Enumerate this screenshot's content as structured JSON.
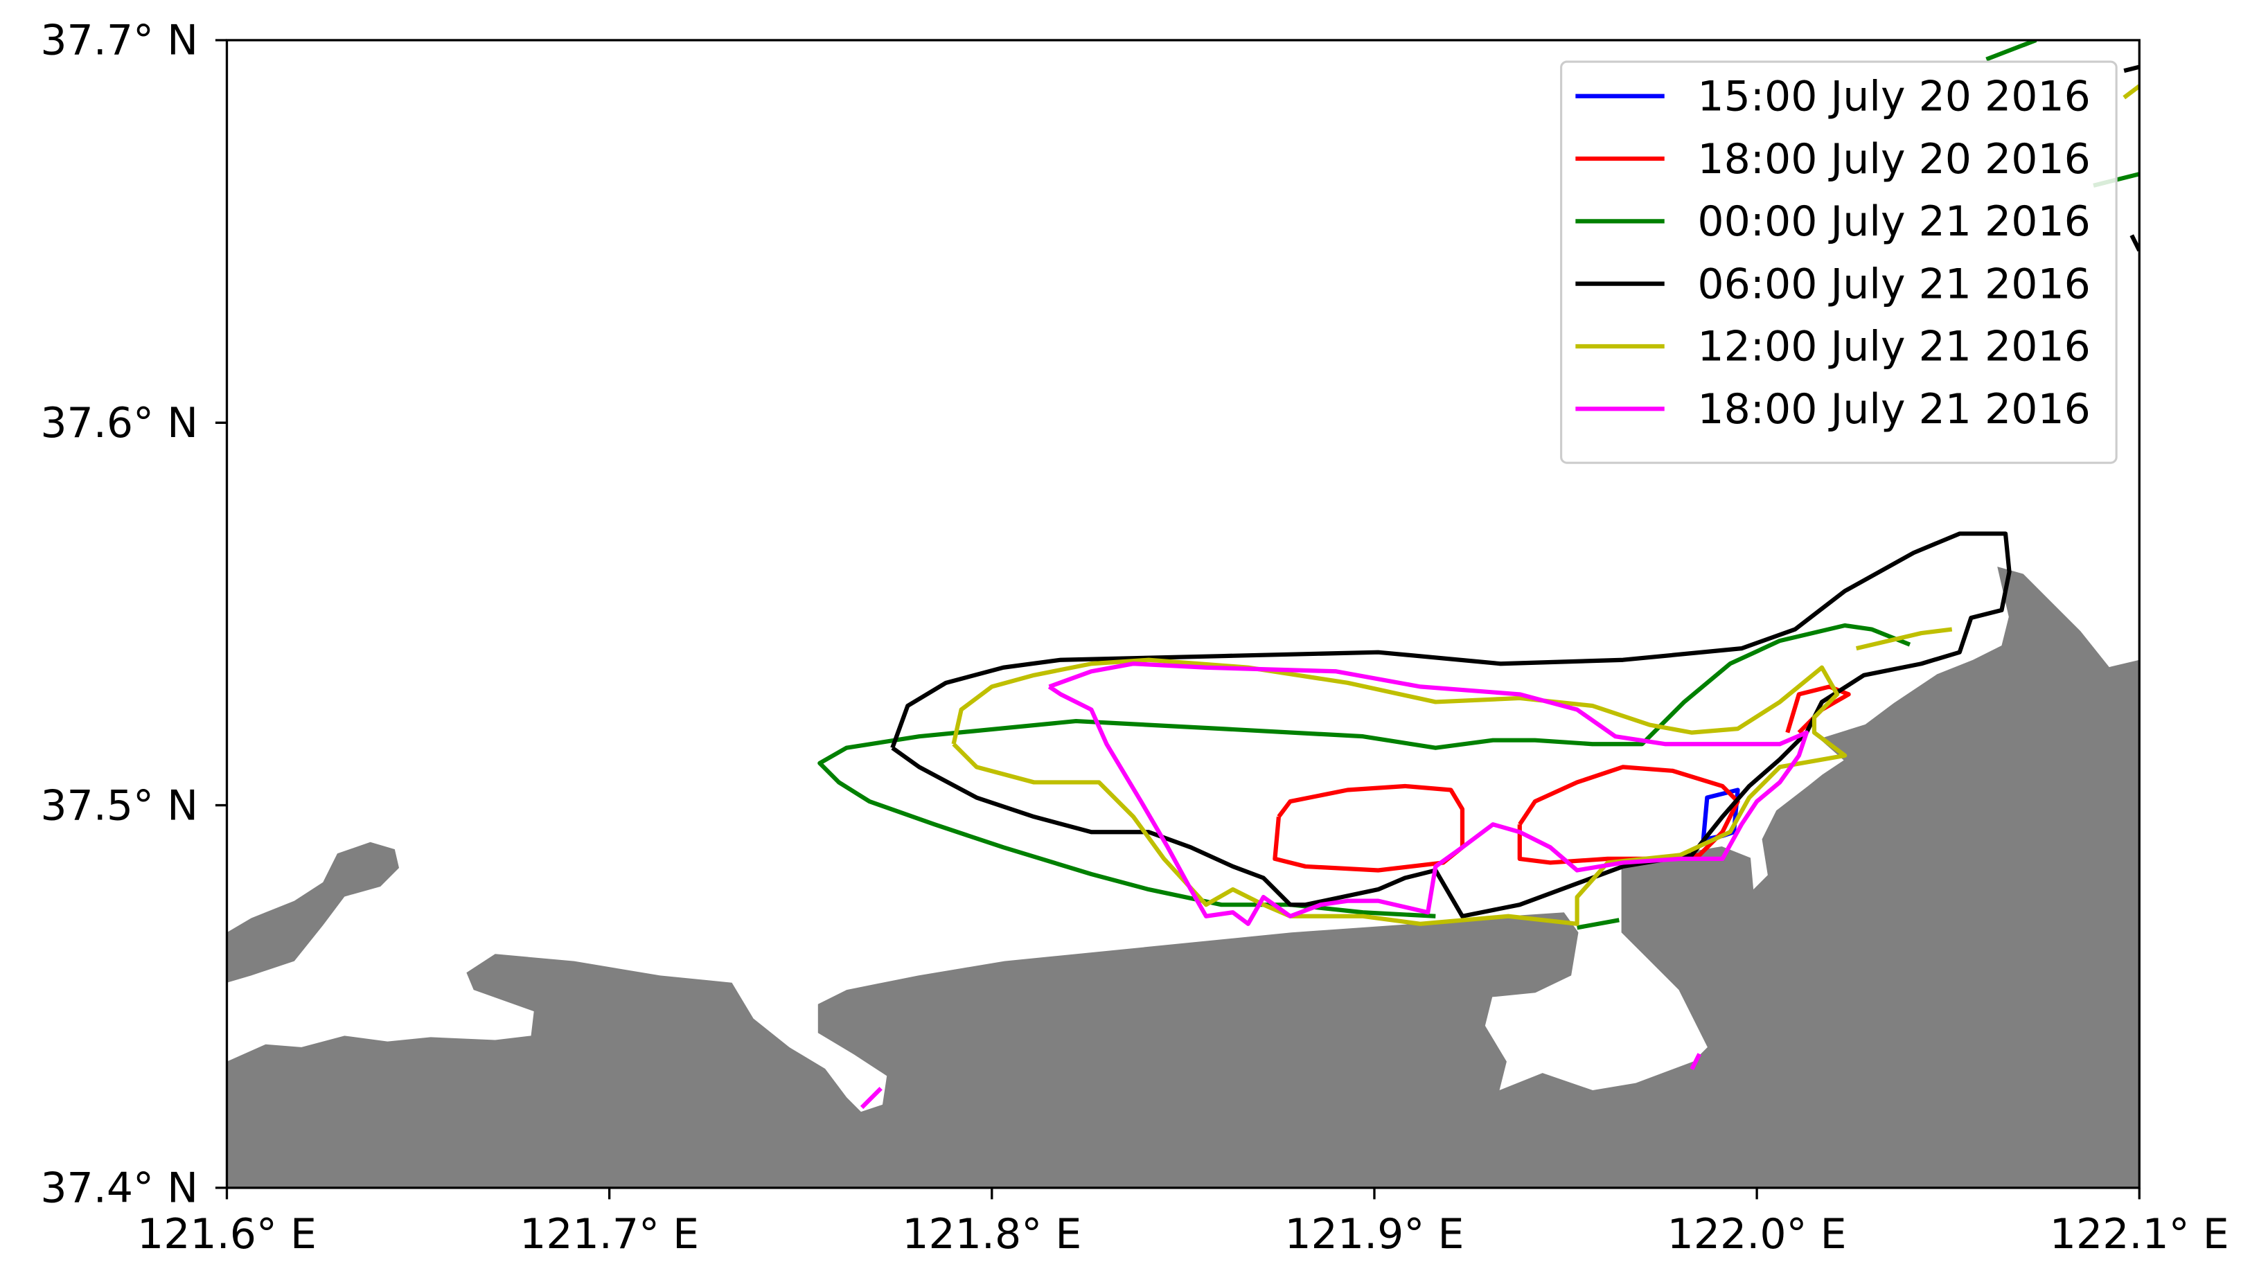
{
  "chart_data": {
    "type": "line",
    "xlim": [
      121.6,
      122.1
    ],
    "ylim": [
      37.4,
      37.7
    ],
    "xticks": [
      {
        "value": 121.6,
        "label": "121.6° E"
      },
      {
        "value": 121.7,
        "label": "121.7° E"
      },
      {
        "value": 121.8,
        "label": "121.8° E"
      },
      {
        "value": 121.9,
        "label": "121.9° E"
      },
      {
        "value": 122.0,
        "label": "122.0° E"
      },
      {
        "value": 122.1,
        "label": "122.1° E"
      }
    ],
    "yticks": [
      {
        "value": 37.4,
        "label": "37.4° N"
      },
      {
        "value": 37.5,
        "label": "37.5° N"
      },
      {
        "value": 37.6,
        "label": "37.6° N"
      },
      {
        "value": 37.7,
        "label": "37.7° N"
      }
    ],
    "legend": "upper right",
    "series": [
      {
        "name": "15:00 July 20 2016",
        "color": "#0000ff",
        "x": [
          121.986,
          121.987,
          121.995,
          121.994,
          121.991,
          121.986
        ],
        "y": [
          37.491,
          37.502,
          37.504,
          37.493,
          37.492,
          37.491
        ]
      },
      {
        "name": "18:00 July 20 2016",
        "color": "#ff0000",
        "x": [
          121.875,
          121.878,
          121.893,
          121.908,
          121.92,
          121.923,
          121.923,
          121.918,
          121.901,
          121.882,
          121.874,
          121.875,
          null,
          121.938,
          121.942,
          121.953,
          121.965,
          121.978,
          121.991,
          121.995,
          121.991,
          121.985,
          121.976,
          121.961,
          121.946,
          121.938,
          121.938,
          null,
          122.008,
          122.011,
          122.019,
          122.024,
          122.017,
          122.011
        ],
        "y": [
          37.497,
          37.501,
          37.504,
          37.505,
          37.504,
          37.499,
          37.489,
          37.485,
          37.483,
          37.484,
          37.486,
          37.497,
          null,
          37.495,
          37.501,
          37.506,
          37.51,
          37.509,
          37.505,
          37.501,
          37.493,
          37.487,
          37.486,
          37.486,
          37.485,
          37.486,
          37.495,
          null,
          37.519,
          37.529,
          37.531,
          37.529,
          37.525,
          37.519
        ]
      },
      {
        "name": "00:00 July 21 2016",
        "color": "#008000",
        "x": [
          122.04,
          122.03,
          122.023,
          122.006,
          121.993,
          121.981,
          121.97,
          121.957,
          121.942,
          121.931,
          121.916,
          121.897,
          121.86,
          121.822,
          121.781,
          121.762,
          121.755,
          121.76,
          121.768,
          121.785,
          121.803,
          121.826,
          121.841,
          121.86,
          121.878,
          121.897,
          121.916,
          null,
          121.953,
          121.964,
          null,
          122.06,
          122.073,
          null,
          122.088,
          122.1
        ],
        "y": [
          37.542,
          37.546,
          37.547,
          37.543,
          37.537,
          37.527,
          37.516,
          37.516,
          37.517,
          37.517,
          37.515,
          37.518,
          37.52,
          37.522,
          37.518,
          37.515,
          37.511,
          37.506,
          37.501,
          37.495,
          37.489,
          37.482,
          37.478,
          37.474,
          37.474,
          37.472,
          37.471,
          null,
          37.468,
          37.47,
          null,
          37.695,
          37.7,
          null,
          37.662,
          37.665
        ]
      },
      {
        "name": "06:00 July 21 2016",
        "color": "#000000",
        "x": [
          121.774,
          121.778,
          121.788,
          121.803,
          121.818,
          121.86,
          121.901,
          121.933,
          121.965,
          121.996,
          122.01,
          122.023,
          122.041,
          122.053,
          122.065,
          122.066,
          122.064,
          122.056,
          122.053,
          122.043,
          122.028,
          122.017,
          122.013,
          122.006,
          121.998,
          121.991,
          121.983,
          121.965,
          121.938,
          121.923,
          121.916,
          121.908,
          121.901,
          121.882,
          121.878,
          121.871,
          121.863,
          121.852,
          121.841,
          121.826,
          121.811,
          121.796,
          121.781,
          121.774,
          null,
          122.096,
          122.1,
          null,
          122.098,
          122.1
        ],
        "y": [
          37.515,
          37.526,
          37.532,
          37.536,
          37.538,
          37.539,
          37.54,
          37.537,
          37.538,
          37.541,
          37.546,
          37.556,
          37.566,
          37.571,
          37.571,
          37.561,
          37.551,
          37.549,
          37.54,
          37.537,
          37.534,
          37.527,
          37.519,
          37.512,
          37.505,
          37.497,
          37.487,
          37.484,
          37.474,
          37.471,
          37.483,
          37.481,
          37.478,
          37.474,
          37.474,
          37.481,
          37.484,
          37.489,
          37.493,
          37.493,
          37.497,
          37.502,
          37.51,
          37.515,
          null,
          37.692,
          37.693,
          null,
          37.649,
          37.645
        ]
      },
      {
        "name": "12:00 July 21 2016",
        "color": "#bfbf00",
        "x": [
          121.79,
          121.792,
          121.8,
          121.811,
          121.826,
          121.841,
          121.867,
          121.893,
          121.916,
          121.938,
          121.957,
          121.972,
          121.983,
          121.995,
          122.006,
          122.017,
          122.021,
          122.015,
          122.015,
          122.023,
          122.006,
          121.998,
          121.993,
          121.98,
          121.961,
          121.953,
          121.953,
          121.935,
          121.912,
          121.897,
          121.878,
          121.871,
          121.863,
          121.856,
          121.845,
          121.837,
          121.828,
          121.811,
          121.796,
          121.79,
          null,
          122.096,
          122.1,
          null,
          122.026,
          122.043,
          122.051
        ],
        "y": [
          37.516,
          37.525,
          37.531,
          37.534,
          37.537,
          37.538,
          37.536,
          37.532,
          37.527,
          37.528,
          37.526,
          37.521,
          37.519,
          37.52,
          37.527,
          37.536,
          37.529,
          37.523,
          37.519,
          37.513,
          37.51,
          37.502,
          37.493,
          37.487,
          37.485,
          37.476,
          37.469,
          37.471,
          37.469,
          37.471,
          37.471,
          37.474,
          37.478,
          37.474,
          37.486,
          37.497,
          37.506,
          37.506,
          37.51,
          37.516,
          null,
          37.685,
          37.688,
          null,
          37.541,
          37.545,
          37.546
        ]
      },
      {
        "name": "18:00 July 21 2016",
        "color": "#ff00ff",
        "x": [
          121.815,
          121.826,
          121.837,
          121.856,
          121.89,
          121.912,
          121.938,
          121.953,
          121.963,
          121.976,
          121.991,
          122.006,
          122.013,
          122.011,
          122.006,
          122.0,
          121.996,
          121.991,
          121.98,
          121.965,
          121.953,
          121.946,
          121.938,
          121.931,
          121.923,
          121.916,
          121.914,
          121.901,
          121.893,
          121.886,
          121.878,
          121.871,
          121.867,
          121.863,
          121.856,
          121.852,
          121.846,
          121.839,
          121.83,
          121.826,
          121.818,
          121.815,
          null,
          121.766,
          121.771,
          null,
          121.983,
          121.985
        ],
        "y": [
          37.531,
          37.535,
          37.537,
          37.536,
          37.535,
          37.531,
          37.529,
          37.525,
          37.518,
          37.516,
          37.516,
          37.516,
          37.519,
          37.513,
          37.506,
          37.501,
          37.495,
          37.486,
          37.486,
          37.485,
          37.483,
          37.489,
          37.493,
          37.495,
          37.489,
          37.484,
          37.472,
          37.475,
          37.475,
          37.474,
          37.471,
          37.476,
          37.469,
          37.472,
          37.471,
          37.478,
          37.489,
          37.501,
          37.516,
          37.525,
          37.529,
          37.531,
          null,
          37.421,
          37.426,
          null,
          37.431,
          37.435
        ]
      }
    ]
  }
}
